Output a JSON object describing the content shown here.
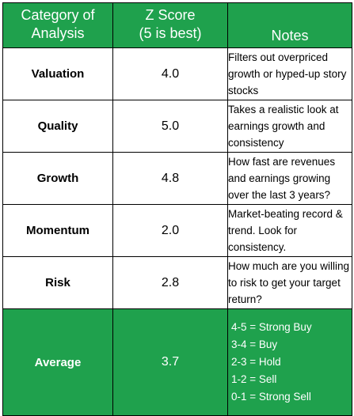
{
  "header": {
    "category_line1": "Category of",
    "category_line2": "Analysis",
    "score_line1": "Z Score",
    "score_line2": "(5 is best)",
    "notes": "Notes"
  },
  "rows": [
    {
      "category": "Valuation",
      "score": "4.0",
      "notes": "Filters out overpriced growth or hyped-up story stocks"
    },
    {
      "category": "Quality",
      "score": "5.0",
      "notes": "Takes a realistic look at earnings growth and consistency"
    },
    {
      "category": "Growth",
      "score": "4.8",
      "notes": "How fast are revenues and earnings growing over the last 3 years?"
    },
    {
      "category": "Momentum",
      "score": "2.0",
      "notes": "Market-beating record & trend. Look for consistency."
    },
    {
      "category": "Risk",
      "score": "2.8",
      "notes": "How much are you willing to risk to get your target return?"
    }
  ],
  "average": {
    "label": "Average",
    "score": "3.7",
    "legend": [
      "4-5 = Strong Buy",
      "3-4 = Buy",
      "2-3 = Hold",
      "1-2 = Sell",
      "0-1 = Strong Sell"
    ]
  },
  "colors": {
    "header_green": "#1fa14d",
    "header_text": "#ffffff",
    "border": "#000000"
  }
}
